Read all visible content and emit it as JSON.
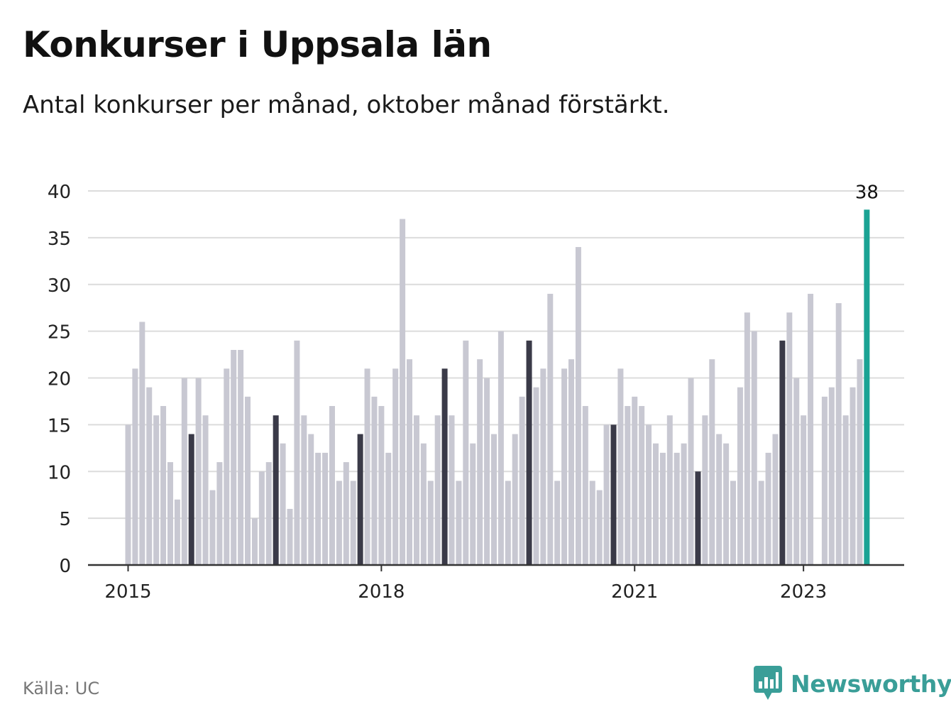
{
  "title": "Konkurser i Uppsala län",
  "subtitle": "Antal konkurser per månad, oktober månad förstärkt.",
  "source": "Källa: UC",
  "brand": {
    "name": "Newsworthy",
    "icon": "bar-chart-speech-bubble-icon"
  },
  "colors": {
    "regular": "#c8c8d2",
    "october": "#3a3a48",
    "latest": "#1aa394",
    "grid": "#dcdcdc",
    "axis": "#333333"
  },
  "chart_data": {
    "type": "bar",
    "title": "Konkurser i Uppsala län",
    "subtitle": "Antal konkurser per månad, oktober månad förstärkt.",
    "start": "2015-01",
    "ylim": [
      0,
      40
    ],
    "yticks": [
      0,
      5,
      10,
      15,
      20,
      25,
      30,
      35,
      40
    ],
    "xtick_labels": [
      "2015",
      "2018",
      "2021",
      "2023"
    ],
    "grid": true,
    "highlight": "october",
    "annotation": "38",
    "values": [
      15,
      21,
      26,
      19,
      16,
      17,
      11,
      7,
      20,
      14,
      20,
      16,
      8,
      11,
      21,
      23,
      23,
      18,
      5,
      10,
      11,
      16,
      13,
      6,
      24,
      16,
      14,
      12,
      12,
      17,
      9,
      11,
      9,
      14,
      21,
      18,
      17,
      12,
      21,
      37,
      22,
      16,
      13,
      9,
      16,
      21,
      16,
      9,
      24,
      13,
      22,
      20,
      14,
      25,
      9,
      14,
      18,
      24,
      19,
      21,
      29,
      9,
      21,
      22,
      34,
      17,
      9,
      8,
      15,
      15,
      21,
      17,
      18,
      17,
      15,
      13,
      12,
      16,
      12,
      13,
      20,
      10,
      16,
      22,
      14,
      13,
      9,
      19,
      27,
      25,
      9,
      12,
      14,
      24,
      27,
      20,
      16,
      29,
      0,
      18,
      19,
      28,
      16,
      19,
      22,
      38
    ]
  }
}
